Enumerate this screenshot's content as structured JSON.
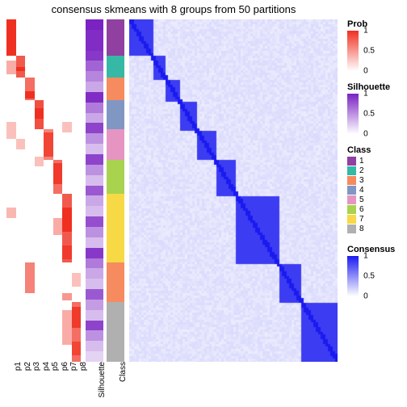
{
  "title": "consensus skmeans with 8 groups from 50 partitions",
  "prob_columns": [
    "p1",
    "p2",
    "p3",
    "p4",
    "p5",
    "p6",
    "p7",
    "p8"
  ],
  "sil_label": "Silhouette",
  "class_label": "Class",
  "class_colors": {
    "1": "#9040a0",
    "2": "#35b8a5",
    "3": "#f58b5e",
    "4": "#8097c4",
    "5": "#e695c2",
    "6": "#a9d34f",
    "7": "#f7d946",
    "8": "#b0b0b0"
  },
  "class_segments": [
    {
      "class": "1",
      "start": 0,
      "end": 0.105
    },
    {
      "class": "2",
      "start": 0.105,
      "end": 0.17
    },
    {
      "class": "3",
      "start": 0.17,
      "end": 0.235
    },
    {
      "class": "4",
      "start": 0.235,
      "end": 0.32
    },
    {
      "class": "5",
      "start": 0.32,
      "end": 0.41
    },
    {
      "class": "6",
      "start": 0.41,
      "end": 0.51
    },
    {
      "class": "7",
      "start": 0.51,
      "end": 0.71
    },
    {
      "class": "3",
      "start": 0.71,
      "end": 0.825
    },
    {
      "class": "8",
      "start": 0.825,
      "end": 1.0
    }
  ],
  "silhouette_values": [
    1.0,
    0.95,
    0.95,
    0.9,
    0.7,
    0.55,
    0.4,
    0.95,
    0.6,
    0.4,
    0.85,
    0.5,
    0.3,
    0.85,
    0.5,
    0.3,
    0.75,
    0.4,
    0.3,
    0.8,
    0.5,
    0.3,
    0.9,
    0.6,
    0.4,
    0.3,
    0.75,
    0.45,
    0.3,
    0.85,
    0.5,
    0.3,
    0.2
  ],
  "prob_matrix": {
    "p1": [
      {
        "s": 0,
        "e": 0.105,
        "v": 1.0
      },
      {
        "s": 0.12,
        "e": 0.16,
        "v": 0.4
      },
      {
        "s": 0.3,
        "e": 0.35,
        "v": 0.3
      },
      {
        "s": 0.55,
        "e": 0.58,
        "v": 0.35
      }
    ],
    "p2": [
      {
        "s": 0.105,
        "e": 0.17,
        "v": 0.8
      },
      {
        "s": 0.14,
        "e": 0.15,
        "v": 1.0
      },
      {
        "s": 0.35,
        "e": 0.38,
        "v": 0.3
      }
    ],
    "p3": [
      {
        "s": 0.17,
        "e": 0.235,
        "v": 0.7
      },
      {
        "s": 0.21,
        "e": 0.23,
        "v": 1.0
      },
      {
        "s": 0.71,
        "e": 0.8,
        "v": 0.6
      }
    ],
    "p4": [
      {
        "s": 0.235,
        "e": 0.32,
        "v": 0.85
      },
      {
        "s": 0.26,
        "e": 0.29,
        "v": 1.0
      },
      {
        "s": 0.4,
        "e": 0.43,
        "v": 0.3
      }
    ],
    "p5": [
      {
        "s": 0.32,
        "e": 0.41,
        "v": 0.6
      },
      {
        "s": 0.33,
        "e": 0.4,
        "v": 0.9
      }
    ],
    "p6": [
      {
        "s": 0.41,
        "e": 0.51,
        "v": 0.7
      },
      {
        "s": 0.42,
        "e": 0.48,
        "v": 0.95
      },
      {
        "s": 0.58,
        "e": 0.63,
        "v": 0.4
      }
    ],
    "p7": [
      {
        "s": 0.51,
        "e": 0.71,
        "v": 0.8
      },
      {
        "s": 0.55,
        "e": 0.62,
        "v": 1.0
      },
      {
        "s": 0.66,
        "e": 0.7,
        "v": 0.95
      },
      {
        "s": 0.3,
        "e": 0.33,
        "v": 0.3
      },
      {
        "s": 0.8,
        "e": 0.82,
        "v": 0.5
      },
      {
        "s": 0.85,
        "e": 0.95,
        "v": 0.4
      }
    ],
    "p8": [
      {
        "s": 0.825,
        "e": 1.0,
        "v": 0.7
      },
      {
        "s": 0.84,
        "e": 0.9,
        "v": 0.95
      },
      {
        "s": 0.94,
        "e": 0.98,
        "v": 0.9
      },
      {
        "s": 0.74,
        "e": 0.78,
        "v": 0.3
      }
    ]
  },
  "colormaps": {
    "prob": {
      "low": "#ffffff",
      "high": "#ef3020"
    },
    "silhouette": {
      "low": "#ffffff",
      "high": "#7a22c2"
    },
    "consensus": {
      "low": "#ffffff",
      "high": "#1a1af0"
    }
  },
  "legends": {
    "prob": {
      "title": "Prob",
      "ticks": [
        {
          "v": 1,
          "l": "1"
        },
        {
          "v": 0.5,
          "l": "0.5"
        },
        {
          "v": 0,
          "l": "0"
        }
      ]
    },
    "silhouette": {
      "title": "Silhouette",
      "ticks": [
        {
          "v": 1,
          "l": "1"
        },
        {
          "v": 0.5,
          "l": "0.5"
        },
        {
          "v": 0,
          "l": "0"
        }
      ]
    },
    "class": {
      "title": "Class",
      "items": [
        "1",
        "2",
        "3",
        "4",
        "5",
        "6",
        "7",
        "8"
      ]
    },
    "consensus": {
      "title": "Consensus",
      "ticks": [
        {
          "v": 1,
          "l": "1"
        },
        {
          "v": 0.5,
          "l": "0.5"
        },
        {
          "v": 0,
          "l": "0"
        }
      ]
    }
  }
}
